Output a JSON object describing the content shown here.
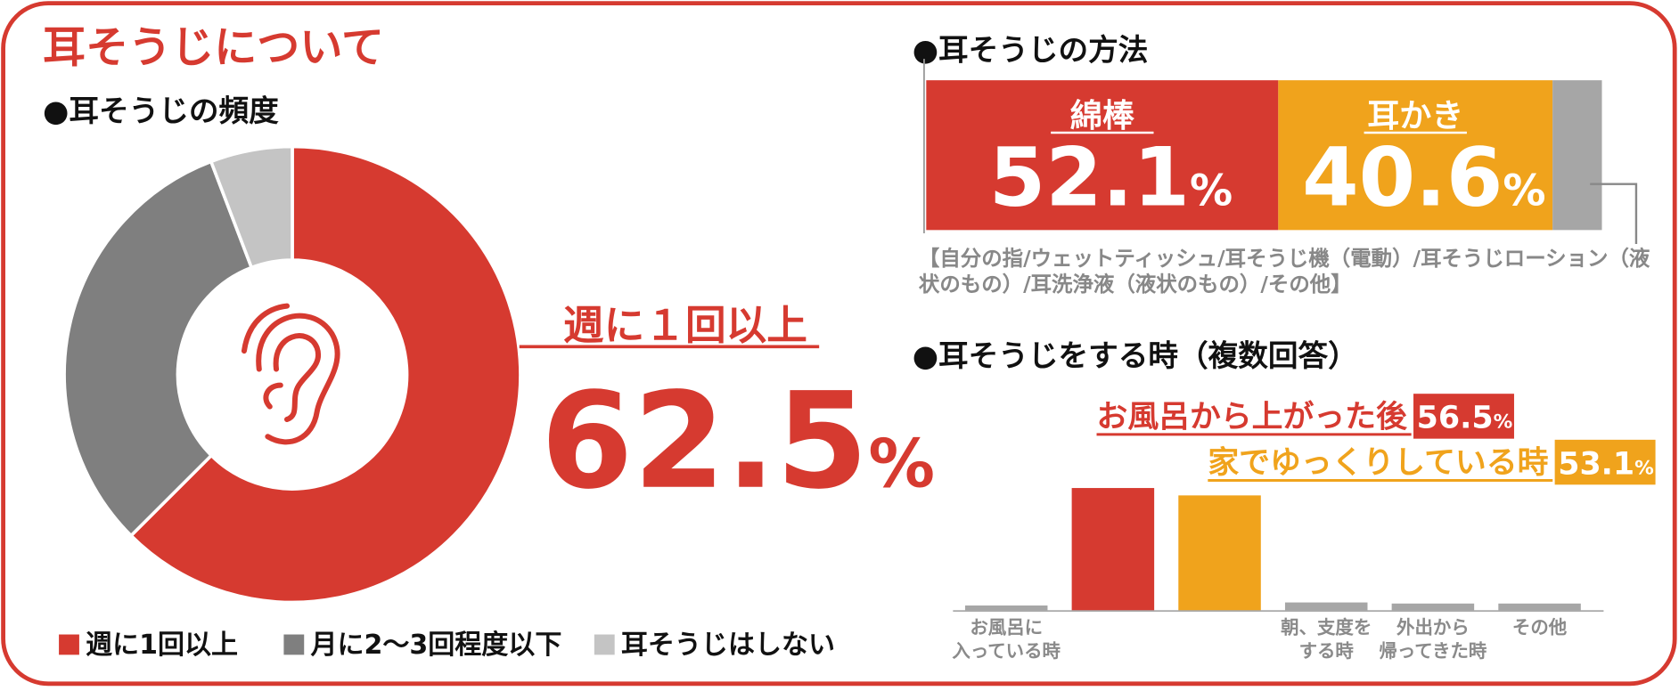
{
  "title": "耳そうじについて",
  "chart_data": [
    {
      "type": "donut",
      "title": "●耳そうじの頻度",
      "series": [
        {
          "name": "週に1回以上",
          "color": "#d63a30",
          "values": [
            62.5
          ],
          "value_labels": [
            "62.5%"
          ]
        },
        {
          "name": "月に2〜3回程度以下",
          "color": "#7f7f7f",
          "values": [
            31.7
          ]
        },
        {
          "name": "耳そうじはしない",
          "color": "#c4c4c4",
          "values": [
            5.8
          ]
        }
      ],
      "annotation": "週に１回以上"
    },
    {
      "type": "stacked_bar",
      "title": "●耳そうじの方法",
      "xlim": [
        0,
        100
      ],
      "series": [
        {
          "name": "綿棒",
          "color": "#d63a30",
          "values": [
            52.1
          ],
          "value_labels": [
            "52.1%"
          ]
        },
        {
          "name": "耳かき",
          "color": "#f0a31c",
          "values": [
            40.6
          ],
          "value_labels": [
            "40.6%"
          ]
        },
        {
          "name": "【自分の指/ウェットティッシュ/耳そうじ機（電動）/耳そうじローション（液状のもの）/耳洗浄液（液状のもの）/その他】",
          "color": "#a6a6a6",
          "values": [
            7.3
          ]
        }
      ]
    },
    {
      "type": "bar",
      "title": "●耳そうじをする時（複数回答）",
      "categories": [
        "お風呂に\n入っている時",
        "お風呂から上がった後",
        "家でゆっくりしている時",
        "朝、支度を\nする時",
        "外出から\n帰ってきた時",
        "その他"
      ],
      "values": [
        2.5,
        56.5,
        53.1,
        3.9,
        3.4,
        3.4
      ],
      "value_labels": [
        null,
        "56.5%",
        "53.1%",
        null,
        null,
        null
      ],
      "colors": [
        "#a6a6a6",
        "#d63a30",
        "#f0a31c",
        "#a6a6a6",
        "#a6a6a6",
        "#a6a6a6"
      ],
      "ylim": [
        0,
        60
      ]
    }
  ]
}
